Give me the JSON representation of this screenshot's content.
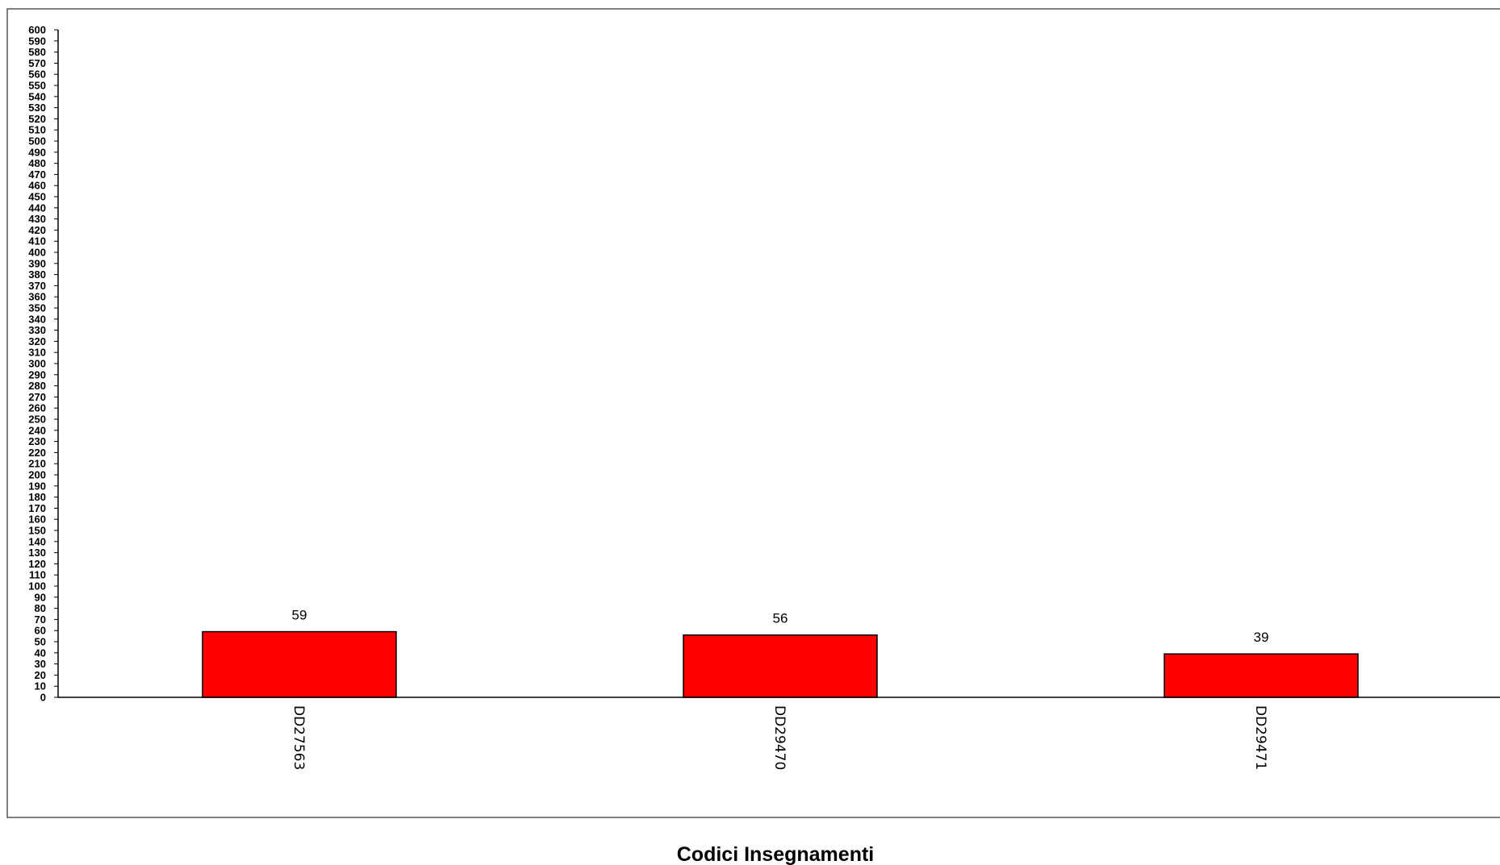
{
  "chart_data": {
    "type": "bar",
    "categories": [
      "DD27563",
      "DD29470",
      "DD29471"
    ],
    "values": [
      59,
      56,
      39
    ],
    "data_labels": [
      "59",
      "56",
      "39"
    ],
    "xlabel": "Codici Insegnamenti",
    "ylim": [
      0,
      600
    ],
    "ytick_step": 10,
    "yticks": [
      "0",
      "10",
      "20",
      "30",
      "40",
      "50",
      "60",
      "70",
      "80",
      "90",
      "100",
      "110",
      "120",
      "130",
      "140",
      "150",
      "160",
      "170",
      "180",
      "190",
      "200",
      "210",
      "220",
      "230",
      "240",
      "250",
      "260",
      "270",
      "280",
      "290",
      "300",
      "310",
      "320",
      "330",
      "340",
      "350",
      "360",
      "370",
      "380",
      "390",
      "400",
      "410",
      "420",
      "430",
      "440",
      "450",
      "460",
      "470",
      "480",
      "490",
      "500",
      "510",
      "520",
      "530",
      "540",
      "550",
      "560",
      "570",
      "580",
      "590",
      "600"
    ],
    "bar_color": "#ff0000",
    "bar_border_color": "#000000",
    "grid": false,
    "legend": "none"
  }
}
